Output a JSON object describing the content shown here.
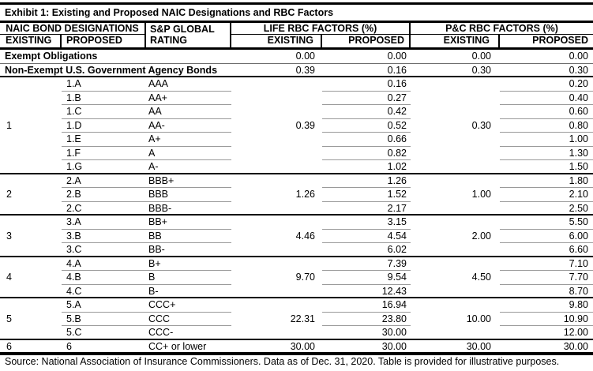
{
  "title": "Exhibit 1: Existing and Proposed NAIC Designations and RBC Factors",
  "header": {
    "naic": "NAIC BOND DESIGNATIONS",
    "sp_line1": "S&P GLOBAL",
    "sp_line2": "RATING",
    "life": "LIFE RBC FACTORS (%)",
    "pc": "P&C RBC FACTORS (%)",
    "existing": "EXISTING",
    "proposed": "PROPOSED"
  },
  "rows": [
    {
      "type": "span",
      "label": "Exempt Obligations",
      "life_e": "0.00",
      "life_p": "0.00",
      "pc_e": "0.00",
      "pc_p": "0.00",
      "sep": "thin"
    },
    {
      "type": "span",
      "label": "Non-Exempt U.S. Government Agency Bonds",
      "life_e": "0.39",
      "life_p": "0.16",
      "pc_e": "0.30",
      "pc_p": "0.30",
      "sep": "black"
    },
    {
      "type": "detail",
      "existing": "",
      "proposed": "1.A",
      "rating": "AAA",
      "life_e": "",
      "life_p": "0.16",
      "pc_e": "",
      "pc_p": "0.20",
      "sep": "gray"
    },
    {
      "type": "detail",
      "existing": "",
      "proposed": "1.B",
      "rating": "AA+",
      "life_e": "",
      "life_p": "0.27",
      "pc_e": "",
      "pc_p": "0.40",
      "sep": "gray"
    },
    {
      "type": "detail",
      "existing": "",
      "proposed": "1.C",
      "rating": "AA",
      "life_e": "",
      "life_p": "0.42",
      "pc_e": "",
      "pc_p": "0.60",
      "sep": "gray"
    },
    {
      "type": "detail",
      "existing": "1",
      "proposed": "1.D",
      "rating": "AA-",
      "life_e": "0.39",
      "life_p": "0.52",
      "pc_e": "0.30",
      "pc_p": "0.80",
      "sep": "gray"
    },
    {
      "type": "detail",
      "existing": "",
      "proposed": "1.E",
      "rating": "A+",
      "life_e": "",
      "life_p": "0.66",
      "pc_e": "",
      "pc_p": "1.00",
      "sep": "gray"
    },
    {
      "type": "detail",
      "existing": "",
      "proposed": "1.F",
      "rating": "A",
      "life_e": "",
      "life_p": "0.82",
      "pc_e": "",
      "pc_p": "1.30",
      "sep": "gray"
    },
    {
      "type": "detail",
      "existing": "",
      "proposed": "1.G",
      "rating": "A-",
      "life_e": "",
      "life_p": "1.02",
      "pc_e": "",
      "pc_p": "1.50",
      "sep": "black"
    },
    {
      "type": "detail",
      "existing": "",
      "proposed": "2.A",
      "rating": "BBB+",
      "life_e": "",
      "life_p": "1.26",
      "pc_e": "",
      "pc_p": "1.80",
      "sep": "gray"
    },
    {
      "type": "detail",
      "existing": "2",
      "proposed": "2.B",
      "rating": "BBB",
      "life_e": "1.26",
      "life_p": "1.52",
      "pc_e": "1.00",
      "pc_p": "2.10",
      "sep": "gray"
    },
    {
      "type": "detail",
      "existing": "",
      "proposed": "2.C",
      "rating": "BBB-",
      "life_e": "",
      "life_p": "2.17",
      "pc_e": "",
      "pc_p": "2.50",
      "sep": "black"
    },
    {
      "type": "detail",
      "existing": "",
      "proposed": "3.A",
      "rating": "BB+",
      "life_e": "",
      "life_p": "3.15",
      "pc_e": "",
      "pc_p": "5.50",
      "sep": "gray"
    },
    {
      "type": "detail",
      "existing": "3",
      "proposed": "3.B",
      "rating": "BB",
      "life_e": "4.46",
      "life_p": "4.54",
      "pc_e": "2.00",
      "pc_p": "6.00",
      "sep": "gray"
    },
    {
      "type": "detail",
      "existing": "",
      "proposed": "3.C",
      "rating": "BB-",
      "life_e": "",
      "life_p": "6.02",
      "pc_e": "",
      "pc_p": "6.60",
      "sep": "black"
    },
    {
      "type": "detail",
      "existing": "",
      "proposed": "4.A",
      "rating": "B+",
      "life_e": "",
      "life_p": "7.39",
      "pc_e": "",
      "pc_p": "7.10",
      "sep": "gray"
    },
    {
      "type": "detail",
      "existing": "4",
      "proposed": "4.B",
      "rating": "B",
      "life_e": "9.70",
      "life_p": "9.54",
      "pc_e": "4.50",
      "pc_p": "7.70",
      "sep": "gray"
    },
    {
      "type": "detail",
      "existing": "",
      "proposed": "4.C",
      "rating": "B-",
      "life_e": "",
      "life_p": "12.43",
      "pc_e": "",
      "pc_p": "8.70",
      "sep": "black"
    },
    {
      "type": "detail",
      "existing": "",
      "proposed": "5.A",
      "rating": "CCC+",
      "life_e": "",
      "life_p": "16.94",
      "pc_e": "",
      "pc_p": "9.80",
      "sep": "gray"
    },
    {
      "type": "detail",
      "existing": "5",
      "proposed": "5.B",
      "rating": "CCC",
      "life_e": "22.31",
      "life_p": "23.80",
      "pc_e": "10.00",
      "pc_p": "10.90",
      "sep": "gray"
    },
    {
      "type": "detail",
      "existing": "",
      "proposed": "5.C",
      "rating": "CCC-",
      "life_e": "",
      "life_p": "30.00",
      "pc_e": "",
      "pc_p": "12.00",
      "sep": "black"
    },
    {
      "type": "detail",
      "existing": "6",
      "proposed": "6",
      "rating": "CC+ or lower",
      "life_e": "30.00",
      "life_p": "30.00",
      "pc_e": "30.00",
      "pc_p": "30.00",
      "sep": "black"
    }
  ],
  "footer": {
    "source": "Source: National Association of Insurance Commissioners.  Data as of Dec. 31, 2020.  Table is provided for illustrative purposes."
  },
  "colors": {
    "line_black": "#000000",
    "rule_gray": "#9a9a9a"
  }
}
